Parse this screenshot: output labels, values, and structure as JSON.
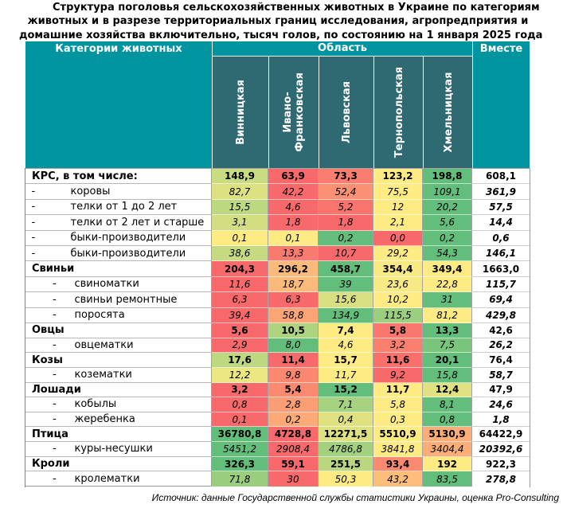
{
  "title": {
    "lines": [
      "Структура поголовья сельскохозяйственных животных в Украине по категориям",
      "животных и в разрезе территориальных границ исследования, агропредприятия и",
      "домашние хозяйства включительно, тысяч голов, по состоянию на 1 января 2025 года"
    ]
  },
  "header": {
    "categories_label": "Категории животных",
    "oblast_label": "Область",
    "total_label": "Вместе",
    "regions": [
      "Винницкая",
      "Ивано-\nФранковская",
      "Львовская",
      "Тернопольская",
      "Хмельницкая"
    ]
  },
  "colors": {
    "header_teal": "#0093a0",
    "region_cell_teal": "#2f6a73",
    "heatmap_min": "#F8696B",
    "heatmap_mid": "#FFEB84",
    "heatmap_max": "#63BE7B"
  },
  "chart_data": {
    "type": "table",
    "title": "Структура поголовья сельскохозяйственных животных в Украине по категориям животных и в разрезе территориальных границ исследования, агропредприятия и домашние хозяйства включительно, тысяч голов, по состоянию на 1 января 2025 года",
    "columns": [
      "Категории животных",
      "Винницкая",
      "Ивано-Франковская",
      "Львовская",
      "Тернопольская",
      "Хмельницкая",
      "Вместе"
    ],
    "heatmap": "per-row 3-color scale min/median/max over the 5 region columns",
    "rows": [
      {
        "label": "КРС, в том числе:",
        "level": 0,
        "values": [
          "148,9",
          "63,9",
          "73,3",
          "123,2",
          "198,8"
        ],
        "total": "608,1"
      },
      {
        "label": "коровы",
        "level": 1,
        "values": [
          "82,7",
          "42,2",
          "52,4",
          "75,5",
          "109,1"
        ],
        "total": "361,9"
      },
      {
        "label": "телки от 1 до 2 лет",
        "level": 1,
        "values": [
          "15,5",
          "4,6",
          "5,2",
          "12",
          "20,2"
        ],
        "total": "57,5"
      },
      {
        "label": "телки от 2 лет и старше",
        "level": 1,
        "values": [
          "3,1",
          "1,8",
          "1,8",
          "2,1",
          "5,6"
        ],
        "total": "14,4"
      },
      {
        "label": "быки-производители",
        "level": 1,
        "values": [
          "0,1",
          "0,1",
          "0,2",
          "0,0",
          "0,2"
        ],
        "total": "0,6"
      },
      {
        "label": "быки-производители",
        "level": 1,
        "values": [
          "38,6",
          "13,3",
          "10,7",
          "29,2",
          "54,3"
        ],
        "total": "146,1"
      },
      {
        "label": "Свиньи",
        "level": 0,
        "values": [
          "204,3",
          "296,2",
          "458,7",
          "354,4",
          "349,4"
        ],
        "total": "1663,0"
      },
      {
        "label": "свиноматки",
        "level": 2,
        "values": [
          "11,6",
          "18,7",
          "39",
          "23,6",
          "22,8"
        ],
        "total": "115,7"
      },
      {
        "label": "свиньи ремонтные",
        "level": 2,
        "values": [
          "6,3",
          "6,3",
          "15,6",
          "10,2",
          "31"
        ],
        "total": "69,4"
      },
      {
        "label": "поросята",
        "level": 2,
        "values": [
          "39,4",
          "58,8",
          "134,9",
          "115,5",
          "81,2"
        ],
        "total": "429,8"
      },
      {
        "label": "Овцы",
        "level": 0,
        "values": [
          "5,6",
          "10,5",
          "7,4",
          "5,8",
          "13,3"
        ],
        "total": "42,6"
      },
      {
        "label": "овцематки",
        "level": 2,
        "values": [
          "2,9",
          "8,0",
          "4,6",
          "3,2",
          "7,5"
        ],
        "total": "26,2"
      },
      {
        "label": "Козы",
        "level": 0,
        "values": [
          "17,6",
          "11,4",
          "15,7",
          "11,6",
          "20,1"
        ],
        "total": "76,4"
      },
      {
        "label": "козематки",
        "level": 2,
        "values": [
          "12,2",
          "9,8",
          "11,7",
          "9,2",
          "15,8"
        ],
        "total": "58,7"
      },
      {
        "label": "Лошади",
        "level": 0,
        "values": [
          "3,2",
          "5,4",
          "15,2",
          "11,7",
          "12,4"
        ],
        "total": "47,9"
      },
      {
        "label": "кобылы",
        "level": 2,
        "values": [
          "0,8",
          "2,8",
          "7,1",
          "5,8",
          "8,1"
        ],
        "total": "24,6"
      },
      {
        "label": "жеребенка",
        "level": 2,
        "values": [
          "0,1",
          "0,2",
          "0,4",
          "0,3",
          "0,8"
        ],
        "total": "1,8"
      },
      {
        "label": "Птица",
        "level": 0,
        "values": [
          "36780,8",
          "4728,8",
          "12271,5",
          "5510,9",
          "5130,9"
        ],
        "total": "64422,9"
      },
      {
        "label": "куры-несушки",
        "level": 2,
        "values": [
          "5451,2",
          "2908,4",
          "4786,8",
          "3841,8",
          "3404,4"
        ],
        "total": "20392,6"
      },
      {
        "label": "Кроли",
        "level": 0,
        "values": [
          "326,3",
          "59,1",
          "251,5",
          "93,4",
          "192"
        ],
        "total": "922,3"
      },
      {
        "label": "кролематки",
        "level": 2,
        "values": [
          "71,8",
          "30",
          "50,3",
          "43,2",
          "83,5"
        ],
        "total": "278,8"
      }
    ],
    "source": "Источник: данные Государственной службы статистики Украины, оценка Pro-Consulting"
  }
}
